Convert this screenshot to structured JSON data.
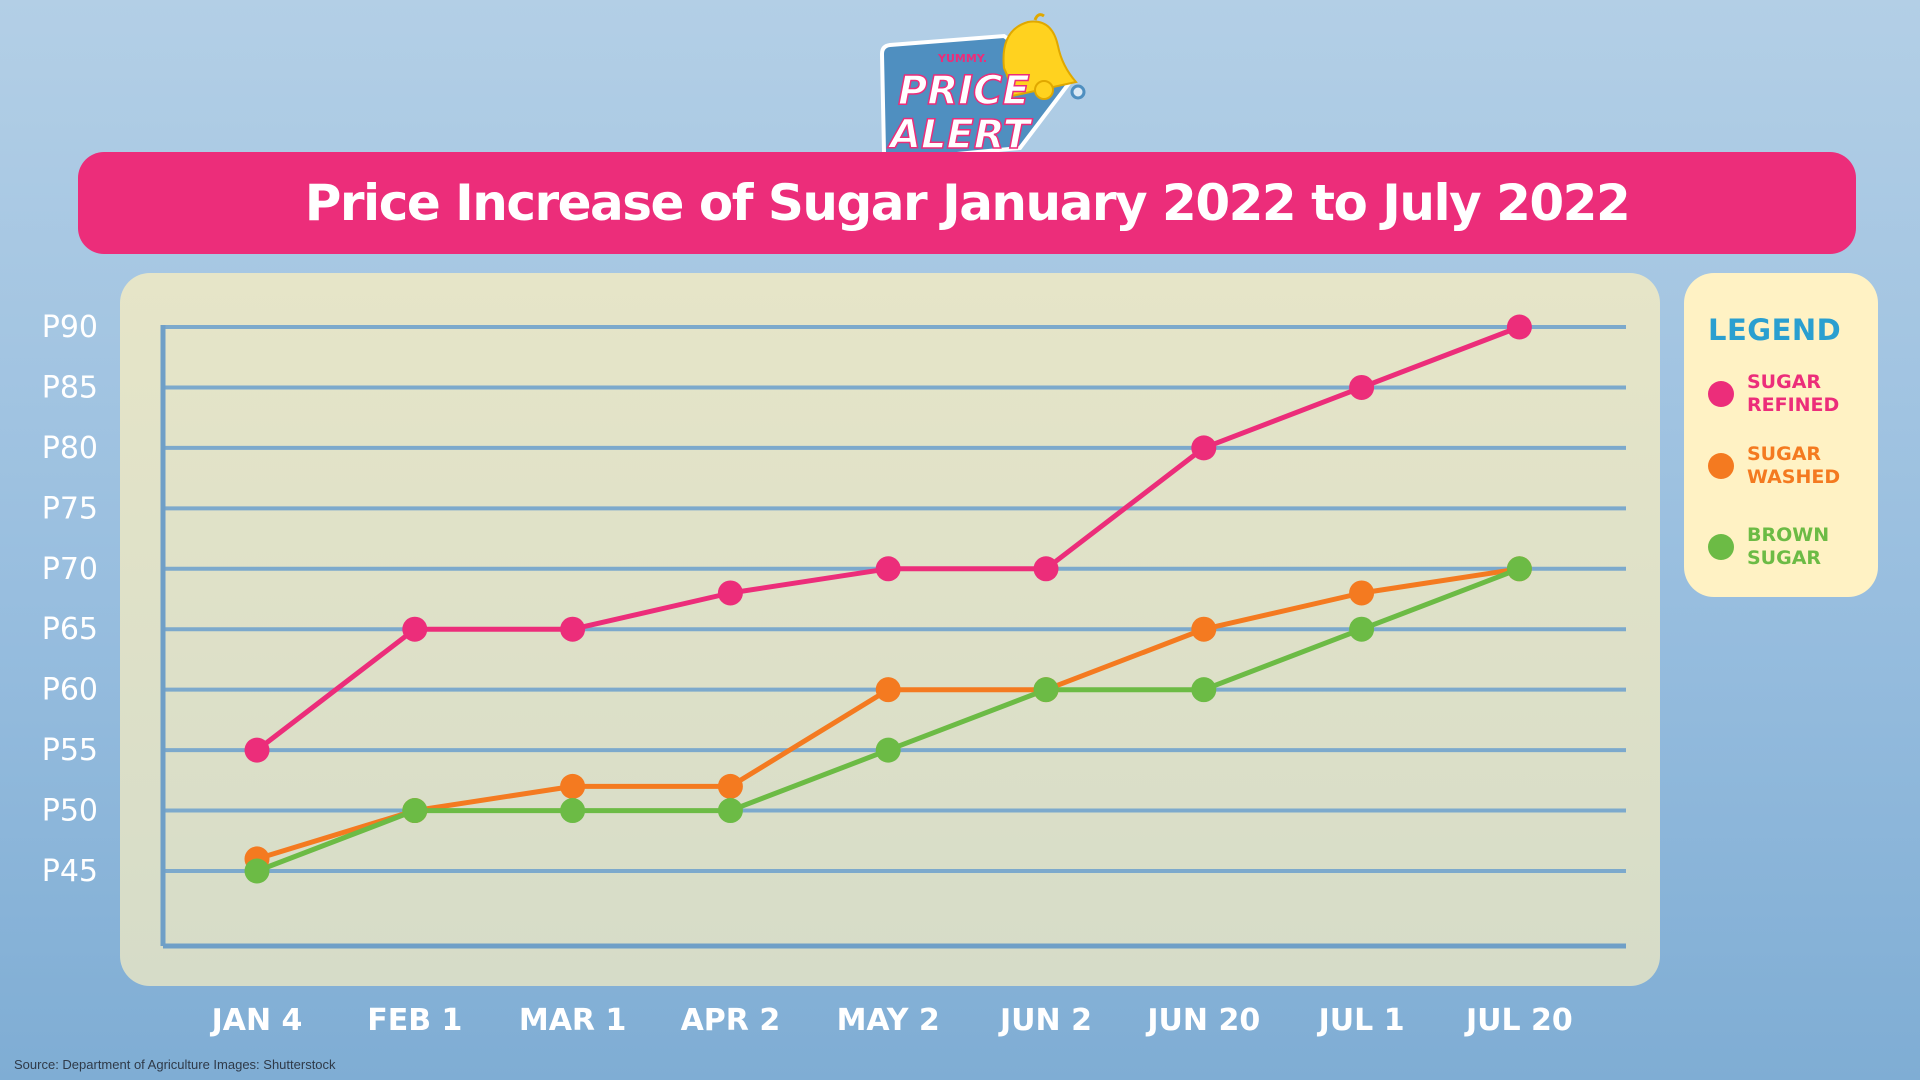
{
  "logo": {
    "brand": "YUMMY.",
    "line1": "PRICE",
    "line2": "ALERT"
  },
  "title": "Price Increase of Sugar January 2022 to July 2022",
  "source": "Source: Department of Agriculture Images: Shutterstock",
  "legend": {
    "title": "LEGEND",
    "items": [
      {
        "line1": "SUGAR",
        "line2": "REFINED",
        "color": "#ec2d7a"
      },
      {
        "line1": "SUGAR",
        "line2": "WASHED",
        "color": "#f47a20"
      },
      {
        "line1": "BROWN",
        "line2": "SUGAR",
        "color": "#6cbb45"
      }
    ]
  },
  "colors": {
    "title_banner": "#ec2d7a",
    "grid_line": "#7ca9cc",
    "axis_line": "#6f9fc7",
    "legend_title": "#2a9fd0",
    "axis_text": "#ffffff"
  },
  "chart_data": {
    "type": "line",
    "title": "Price Increase of Sugar January 2022 to July 2022",
    "xlabel": "",
    "ylabel": "",
    "categories": [
      "JAN 4",
      "FEB 1",
      "MAR 1",
      "APR 2",
      "MAY 2",
      "JUN 2",
      "JUN 20",
      "JUL 1",
      "JUL 20"
    ],
    "ylim": [
      40,
      90
    ],
    "y_ticks": [
      90,
      85,
      80,
      75,
      70,
      65,
      60,
      55,
      50,
      45
    ],
    "y_tick_labels": [
      "P90",
      "P85",
      "P80",
      "P75",
      "P70",
      "P65",
      "P60",
      "P55",
      "P50",
      "P45"
    ],
    "grid": true,
    "legend_position": "right",
    "series": [
      {
        "name": "SUGAR REFINED",
        "color": "#ec2d7a",
        "values": [
          55,
          65,
          65,
          68,
          70,
          70,
          80,
          85,
          90
        ]
      },
      {
        "name": "SUGAR WASHED",
        "color": "#f47a20",
        "values": [
          46,
          50,
          52,
          52,
          60,
          60,
          65,
          68,
          70
        ]
      },
      {
        "name": "BROWN SUGAR",
        "color": "#6cbb45",
        "values": [
          45,
          50,
          50,
          50,
          55,
          60,
          60,
          65,
          70
        ]
      }
    ]
  }
}
